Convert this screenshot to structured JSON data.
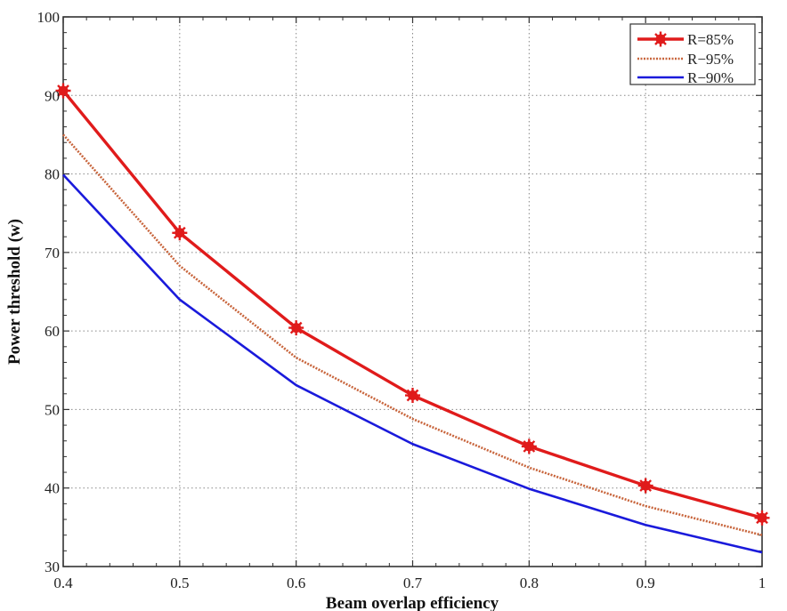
{
  "chart_data": {
    "type": "line",
    "title": "",
    "xlabel": "Beam overlap efficiency",
    "ylabel": "Power threshold (w)",
    "xlim": [
      0.4,
      1.0
    ],
    "ylim": [
      30,
      100
    ],
    "x": [
      0.4,
      0.5,
      0.6,
      0.7,
      0.8,
      0.9,
      1.0
    ],
    "xticks": [
      "0.4",
      "0.5",
      "0.6",
      "0.7",
      "0.8",
      "0.9",
      "1"
    ],
    "yticks": [
      "30",
      "40",
      "50",
      "60",
      "70",
      "80",
      "90",
      "100"
    ],
    "grid": true,
    "legend_position": "upper right",
    "series": [
      {
        "name": "R=85%",
        "color": "#e01b1b",
        "style": "solid-thick-star-markers",
        "values": [
          90.6,
          72.5,
          60.4,
          51.8,
          45.3,
          40.3,
          36.2
        ]
      },
      {
        "name": "R−95%",
        "color": "#c8653c",
        "style": "dotted",
        "values": [
          85.0,
          68.3,
          56.6,
          48.8,
          42.6,
          37.7,
          34.0
        ]
      },
      {
        "name": "R−90%",
        "color": "#1a1adb",
        "style": "solid",
        "values": [
          79.9,
          64.0,
          53.1,
          45.6,
          39.9,
          35.3,
          31.8
        ]
      }
    ]
  }
}
